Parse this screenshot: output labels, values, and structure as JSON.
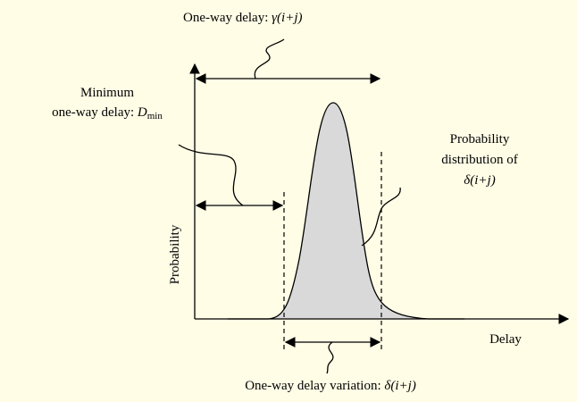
{
  "top_label": {
    "text": "One-way delay: ",
    "math": "γ(i+j)"
  },
  "min_label": {
    "line1": "Minimum",
    "text": "one-way delay: ",
    "math": "D",
    "sub": "min"
  },
  "dist_label": {
    "line1": "Probability",
    "line2": "distribution of",
    "math": "δ(i+j)"
  },
  "variation_label": {
    "text": "One-way delay variation: ",
    "math": "δ(i+j)"
  },
  "axes": {
    "y": "Probability",
    "x": "Delay"
  }
}
